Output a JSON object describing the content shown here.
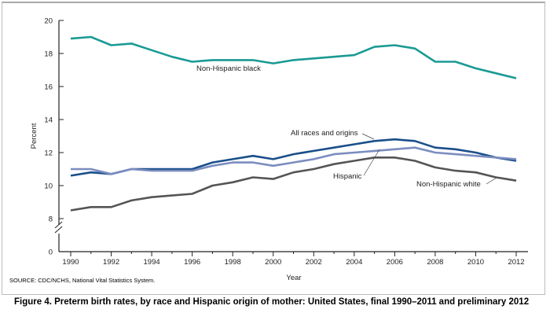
{
  "chart_data": {
    "type": "line",
    "title": "",
    "xlabel": "Year",
    "ylabel": "Percent",
    "ylim": [
      0,
      20
    ],
    "axis_break": [
      0,
      8
    ],
    "yticks": [
      0,
      8,
      10,
      12,
      14,
      16,
      18,
      20
    ],
    "xticks": [
      1990,
      1992,
      1994,
      1996,
      1998,
      2000,
      2002,
      2004,
      2006,
      2008,
      2010,
      2012
    ],
    "x": [
      1990,
      1991,
      1992,
      1993,
      1994,
      1995,
      1996,
      1997,
      1998,
      1999,
      2000,
      2001,
      2002,
      2003,
      2004,
      2005,
      2006,
      2007,
      2008,
      2009,
      2010,
      2011,
      2012
    ],
    "grid": false,
    "series": [
      {
        "name": "Non-Hispanic black",
        "color": "#1a9a94",
        "values": [
          18.9,
          19.0,
          18.5,
          18.6,
          18.2,
          17.8,
          17.5,
          17.6,
          17.6,
          17.6,
          17.4,
          17.6,
          17.7,
          17.8,
          17.9,
          18.4,
          18.5,
          18.3,
          17.5,
          17.5,
          17.1,
          16.8,
          16.5
        ]
      },
      {
        "name": "All races and origins",
        "color": "#1a4f8a",
        "values": [
          10.6,
          10.8,
          10.7,
          11.0,
          11.0,
          11.0,
          11.0,
          11.4,
          11.6,
          11.8,
          11.6,
          11.9,
          12.1,
          12.3,
          12.5,
          12.7,
          12.8,
          12.7,
          12.3,
          12.2,
          12.0,
          11.7,
          11.5
        ]
      },
      {
        "name": "Hispanic",
        "color": "#7b8dbf",
        "values": [
          11.0,
          11.0,
          10.7,
          11.0,
          10.9,
          10.9,
          10.9,
          11.2,
          11.4,
          11.4,
          11.2,
          11.4,
          11.6,
          11.9,
          12.0,
          12.1,
          12.2,
          12.3,
          12.0,
          11.9,
          11.8,
          11.7,
          11.6
        ]
      },
      {
        "name": "Non-Hispanic white",
        "color": "#555555",
        "values": [
          8.5,
          8.7,
          8.7,
          9.1,
          9.3,
          9.4,
          9.5,
          10.0,
          10.2,
          10.5,
          10.4,
          10.8,
          11.0,
          11.3,
          11.5,
          11.7,
          11.7,
          11.5,
          11.1,
          10.9,
          10.8,
          10.5,
          10.3
        ]
      }
    ]
  },
  "source": "SOURCE: CDC/NCHS, National Vital Statistics System.",
  "caption": "Figure 4. Preterm birth rates, by race and Hispanic origin of mother: United States, final 1990–2011 and preliminary 2012"
}
